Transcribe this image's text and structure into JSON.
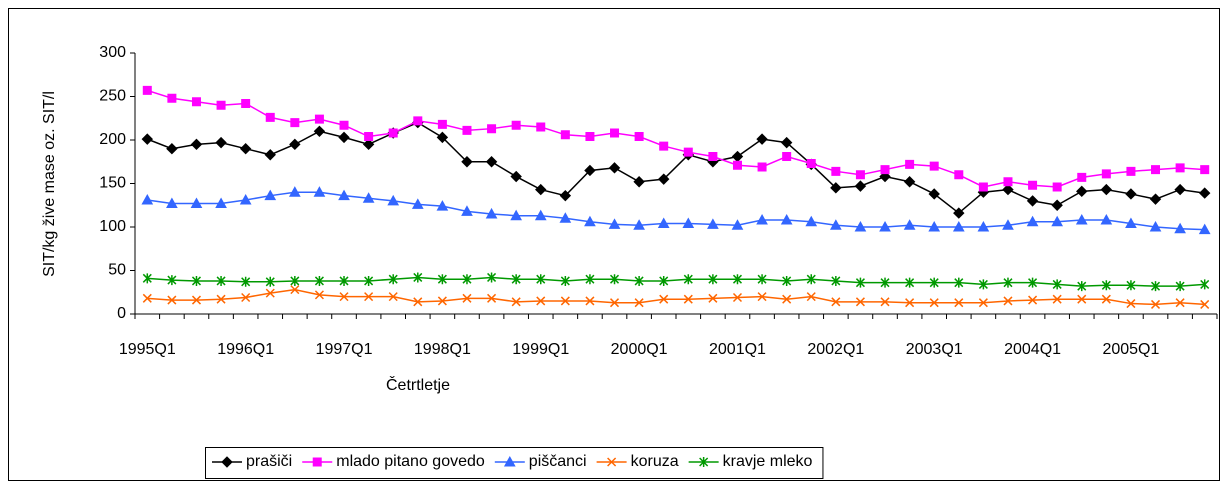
{
  "chart_data": {
    "type": "line",
    "x_label": "Četrtletje",
    "y_label": "SIT/kg žive mase oz. SIT/l",
    "categories": [
      "1995Q1",
      null,
      null,
      null,
      "1996Q1",
      null,
      null,
      null,
      "1997Q1",
      null,
      null,
      null,
      "1998Q1",
      null,
      null,
      null,
      "1999Q1",
      null,
      null,
      null,
      "2000Q1",
      null,
      null,
      null,
      "2001Q1",
      null,
      null,
      null,
      "2002Q1",
      null,
      null,
      null,
      "2003Q1",
      null,
      null,
      null,
      "2004Q1",
      null,
      null,
      null,
      "2005Q1",
      null,
      null,
      null
    ],
    "ylim": [
      0,
      300
    ],
    "yticks": [
      0,
      50,
      100,
      150,
      200,
      250,
      300
    ],
    "grid": false,
    "legend": "bottom",
    "series": [
      {
        "name": "prašiči",
        "color": "#000000",
        "marker": "diamond",
        "values": [
          201,
          190,
          195,
          197,
          190,
          183,
          195,
          210,
          203,
          195,
          208,
          220,
          203,
          175,
          175,
          158,
          143,
          136,
          165,
          168,
          152,
          155,
          183,
          175,
          181,
          201,
          197,
          172,
          145,
          147,
          158,
          152,
          138,
          116,
          140,
          143,
          130,
          125,
          141,
          143,
          138,
          132,
          143,
          139
        ]
      },
      {
        "name": "mlado pitano govedo",
        "color": "#ff00ff",
        "marker": "square",
        "values": [
          257,
          248,
          244,
          240,
          242,
          226,
          220,
          224,
          217,
          204,
          208,
          222,
          218,
          211,
          213,
          217,
          215,
          206,
          204,
          208,
          204,
          193,
          186,
          181,
          171,
          169,
          181,
          173,
          164,
          160,
          166,
          172,
          170,
          160,
          146,
          152,
          148,
          146,
          157,
          161,
          164,
          166,
          168,
          166
        ]
      },
      {
        "name": "piščanci",
        "color": "#3366ff",
        "marker": "triangle",
        "values": [
          131,
          127,
          127,
          127,
          131,
          136,
          140,
          140,
          136,
          133,
          130,
          126,
          124,
          118,
          115,
          113,
          113,
          110,
          106,
          103,
          102,
          104,
          104,
          103,
          102,
          108,
          108,
          106,
          102,
          100,
          100,
          102,
          100,
          100,
          100,
          102,
          106,
          106,
          108,
          108,
          104,
          100,
          98,
          97
        ]
      },
      {
        "name": "koruza",
        "color": "#ff6600",
        "marker": "x",
        "values": [
          18,
          16,
          16,
          17,
          19,
          24,
          28,
          22,
          20,
          20,
          20,
          14,
          15,
          18,
          18,
          14,
          15,
          15,
          15,
          13,
          13,
          17,
          17,
          18,
          19,
          20,
          17,
          20,
          14,
          14,
          14,
          13,
          13,
          13,
          13,
          15,
          16,
          17,
          17,
          17,
          12,
          11,
          13,
          11
        ]
      },
      {
        "name": "kravje mleko",
        "color": "#009900",
        "marker": "star",
        "values": [
          41,
          39,
          38,
          38,
          37,
          37,
          38,
          38,
          38,
          38,
          40,
          42,
          40,
          40,
          42,
          40,
          40,
          38,
          40,
          40,
          38,
          38,
          40,
          40,
          40,
          40,
          38,
          40,
          38,
          36,
          36,
          36,
          36,
          36,
          34,
          36,
          36,
          34,
          32,
          33,
          33,
          32,
          32,
          34
        ]
      }
    ]
  }
}
